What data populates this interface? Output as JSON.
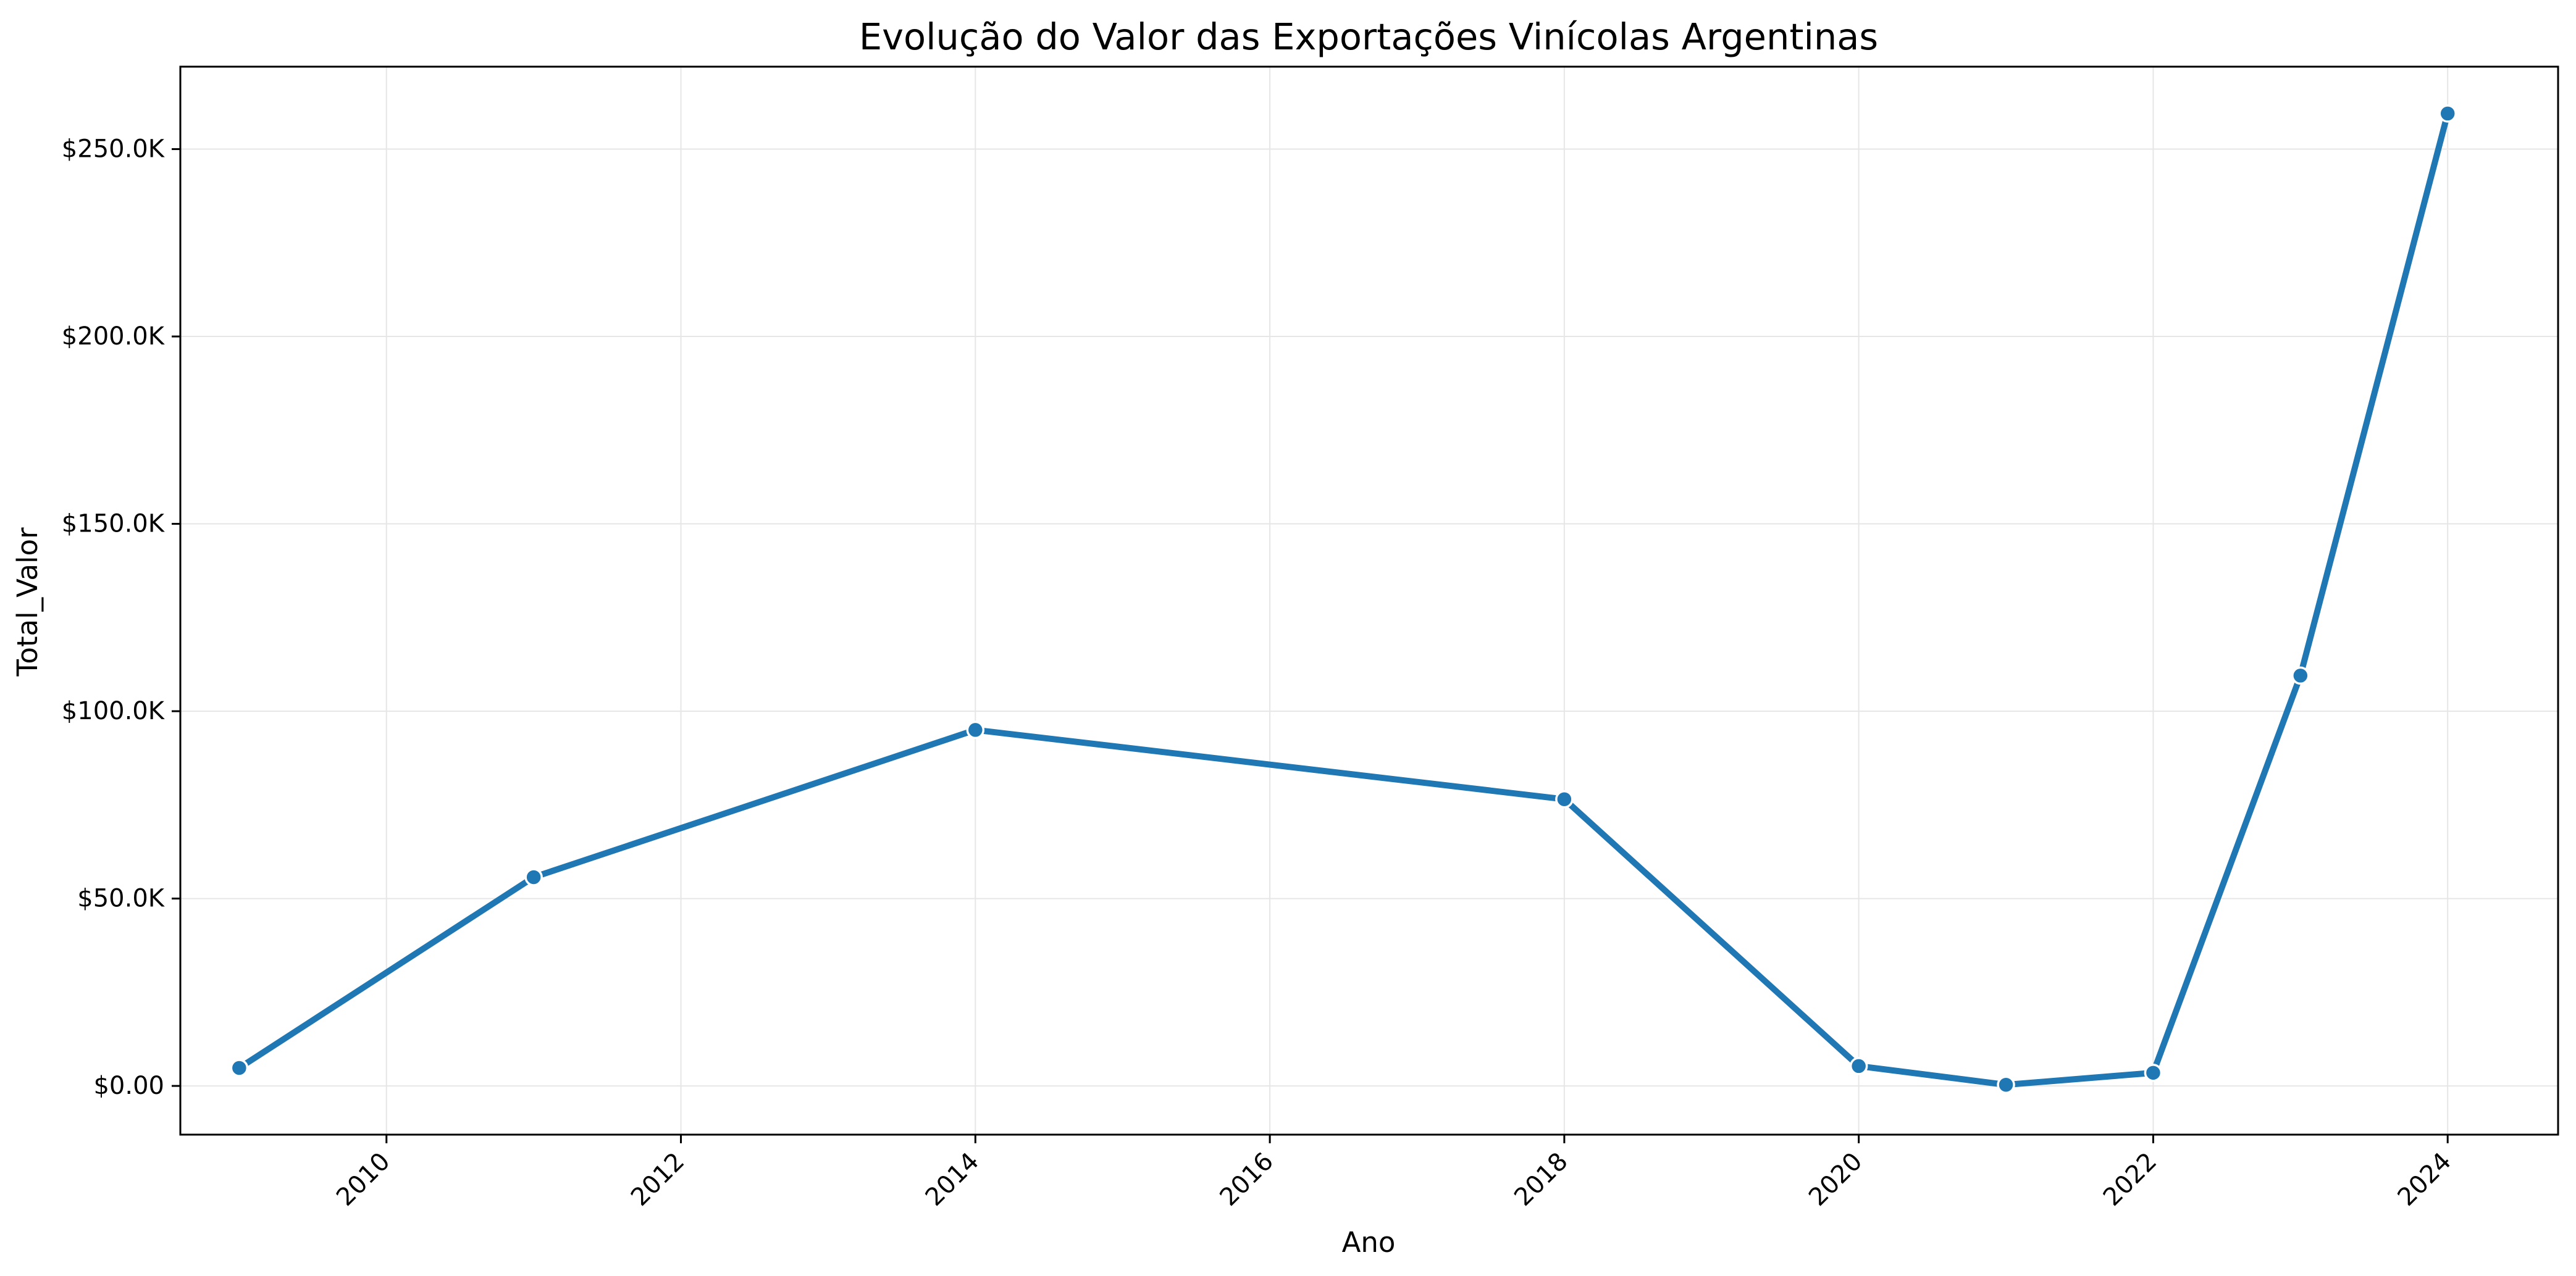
{
  "chart_data": {
    "type": "line",
    "title": "Evolução do Valor das Exportações Vinícolas Argentinas",
    "xlabel": "Ano",
    "ylabel": "Total_Valor",
    "xlim": [
      2008.6,
      2024.75
    ],
    "ylim": [
      -13000,
      272000
    ],
    "xticks": [
      2010,
      2012,
      2014,
      2016,
      2018,
      2020,
      2022,
      2024
    ],
    "xtick_labels": [
      "2010",
      "2012",
      "2014",
      "2016",
      "2018",
      "2020",
      "2022",
      "2024"
    ],
    "yticks": [
      0,
      50000,
      100000,
      150000,
      200000,
      250000
    ],
    "ytick_labels": [
      "$0.00",
      "$50.0K",
      "$100.0K",
      "$150.0K",
      "$200.0K",
      "$250.0K"
    ],
    "grid": true,
    "line_color": "#1f77b4",
    "series": [
      {
        "x": [
          2009,
          2011,
          2014,
          2018,
          2020,
          2021,
          2022,
          2023,
          2024
        ],
        "values": [
          4800,
          55700,
          95000,
          76500,
          5300,
          300,
          3500,
          109500,
          259500
        ]
      }
    ]
  }
}
